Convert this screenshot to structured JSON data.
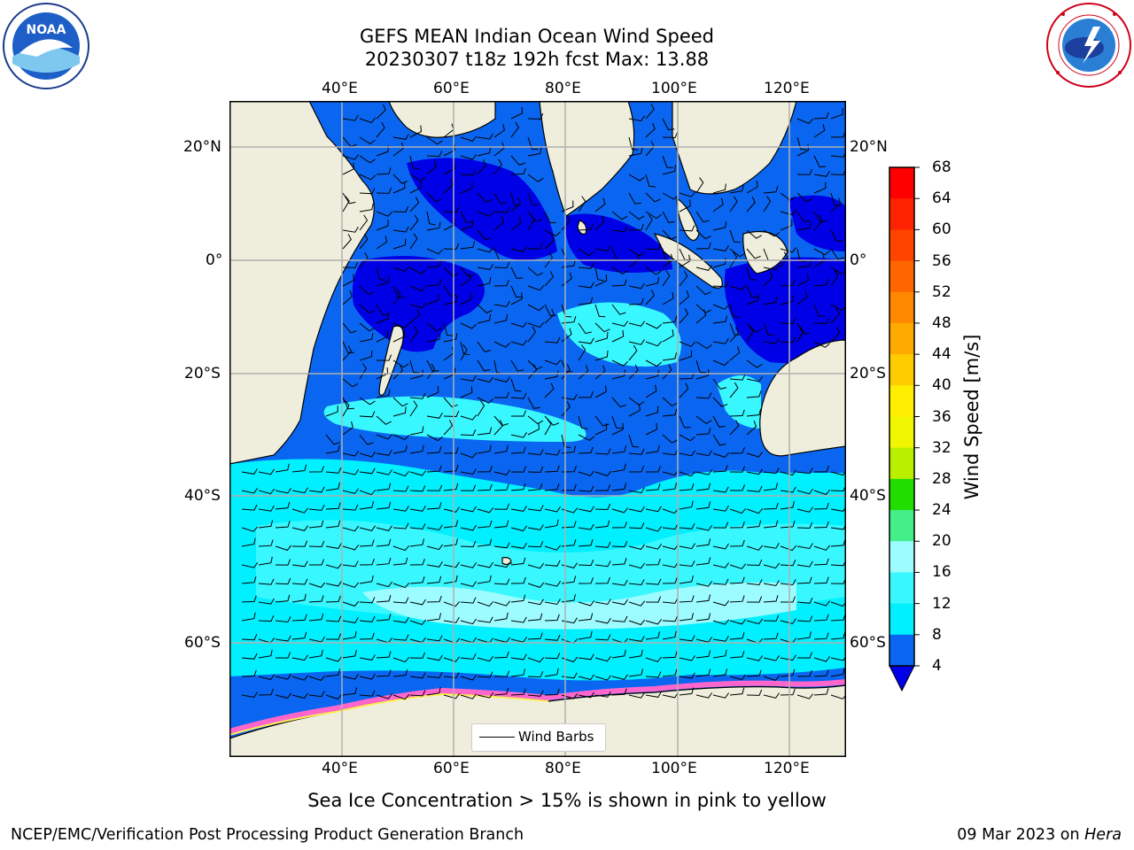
{
  "title": {
    "line1": "GEFS MEAN Indian Ocean Wind Speed",
    "line2": "20230307 t18z 192h fcst   Max: 13.88"
  },
  "logos": {
    "left": {
      "text": "NOAA",
      "icon": "noaa-logo-icon"
    },
    "right": {
      "icon": "national-weather-service-logo-icon"
    }
  },
  "map": {
    "lon_labels": [
      "40°E",
      "60°E",
      "80°E",
      "100°E",
      "120°E"
    ],
    "lat_labels": [
      "20°N",
      "0°",
      "20°S",
      "40°S",
      "60°S"
    ],
    "colors": {
      "land": "#efeedc",
      "ocean_calm": "#0000e6",
      "ocean_4_8": "#0a66f0",
      "ocean_8_12": "#00f0ff",
      "ocean_12_16": "#39f7ff",
      "ocean_16_20": "#9cfbff",
      "sea_ice_pink": "#ff66cc",
      "sea_ice_yellow": "#ffee55",
      "grid": "#b0b0b0"
    },
    "legend": {
      "label": "Wind Barbs"
    }
  },
  "colorbar": {
    "label": "Wind Speed [m/s]",
    "ticks": [
      "68",
      "64",
      "60",
      "56",
      "52",
      "48",
      "44",
      "40",
      "36",
      "32",
      "28",
      "24",
      "20",
      "16",
      "12",
      "8",
      "4"
    ],
    "colors": [
      "#ff0000",
      "#ff2200",
      "#ff4400",
      "#ff6600",
      "#ff8800",
      "#ffaa00",
      "#ffcc00",
      "#ffee00",
      "#f0f500",
      "#d8f500",
      "#b8f000",
      "#60e800",
      "#22dd00",
      "#00cc44",
      "#44ee88",
      "#9cfcff",
      "#39f7ff",
      "#00f0ff",
      "#0a66f0",
      "#0000e6"
    ]
  },
  "caption": "Sea Ice Concentration > 15% is shown in pink to yellow",
  "footer": {
    "left": "NCEP/EMC/Verification Post Processing Product Generation Branch",
    "right_date": "09 Mar 2023 on",
    "right_host": "Hera"
  }
}
